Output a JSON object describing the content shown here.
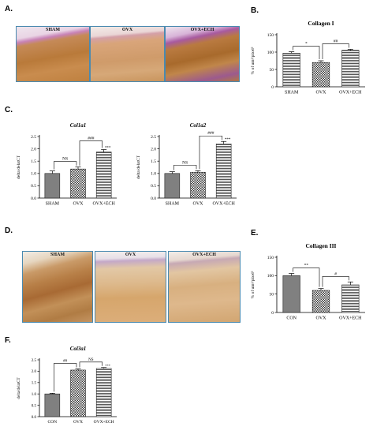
{
  "panels": {
    "a": {
      "label": "A.",
      "images": [
        "SHAM",
        "OVX",
        "OVX+ECH"
      ]
    },
    "b": {
      "label": "B."
    },
    "c": {
      "label": "C."
    },
    "d": {
      "label": "D.",
      "images": [
        "SHAM",
        "OVX",
        "OVX+ECH"
      ]
    },
    "e": {
      "label": "E."
    },
    "f": {
      "label": "F."
    }
  },
  "chart_data": [
    {
      "id": "B",
      "type": "bar",
      "title": "Collagen I",
      "ylabel": "% of um²/pixel²",
      "categories": [
        "SHAM",
        "OVX",
        "OVX+ECH"
      ],
      "values": [
        97,
        70,
        105
      ],
      "errors": [
        4,
        5,
        3
      ],
      "ylim": [
        0,
        150
      ],
      "yticks": [
        0,
        50,
        100,
        150
      ],
      "brackets": [
        {
          "from": 0,
          "to": 1,
          "label": "*"
        },
        {
          "from": 1,
          "to": 2,
          "label": "##"
        }
      ],
      "patterns": [
        "hline",
        "check",
        "hline"
      ]
    },
    {
      "id": "C1",
      "type": "bar",
      "title": "Col1a1",
      "ylabel": "delta/delatCT",
      "categories": [
        "SHAM",
        "OVX",
        "OVX+ECH"
      ],
      "values": [
        1.0,
        1.18,
        1.87
      ],
      "errors": [
        0.1,
        0.08,
        0.1
      ],
      "ylim": [
        0,
        2.5
      ],
      "yticks": [
        0.0,
        0.5,
        1.0,
        1.5,
        2.0,
        2.5
      ],
      "brackets": [
        {
          "from": 0,
          "to": 1,
          "label": "NS"
        },
        {
          "from": 1,
          "to": 2,
          "label": "###"
        }
      ],
      "starlabels": [
        "",
        "",
        "***"
      ],
      "patterns": [
        "dgray",
        "check",
        "hline"
      ]
    },
    {
      "id": "C2",
      "type": "bar",
      "title": "Col1a2",
      "ylabel": "delta/delatCT",
      "categories": [
        "SHAM",
        "OVX",
        "OVX+ECH"
      ],
      "values": [
        1.0,
        1.05,
        2.2
      ],
      "errors": [
        0.07,
        0.06,
        0.1
      ],
      "ylim": [
        0,
        2.5
      ],
      "yticks": [
        0.0,
        0.5,
        1.0,
        1.5,
        2.0,
        2.5
      ],
      "brackets": [
        {
          "from": 0,
          "to": 1,
          "label": "NS"
        },
        {
          "from": 1,
          "to": 2,
          "label": "###"
        }
      ],
      "starlabels": [
        "",
        "",
        "***"
      ],
      "patterns": [
        "dgray",
        "check",
        "hline"
      ]
    },
    {
      "id": "E",
      "type": "bar",
      "title": "Collagen III",
      "ylabel": "% of um²/pixel²",
      "categories": [
        "CON",
        "OVX",
        "OVX+ECH"
      ],
      "values": [
        100,
        60,
        75
      ],
      "errors": [
        6,
        5,
        8
      ],
      "ylim": [
        0,
        150
      ],
      "yticks": [
        0,
        50,
        100,
        150
      ],
      "brackets": [
        {
          "from": 0,
          "to": 1,
          "label": "**"
        },
        {
          "from": 1,
          "to": 2,
          "label": "#"
        }
      ],
      "patterns": [
        "dgray",
        "check",
        "hline"
      ]
    },
    {
      "id": "F",
      "type": "bar",
      "title": "Col3a1",
      "ylabel": "delta/delatCT",
      "categories": [
        "CON",
        "OVX",
        "OVX+ECH"
      ],
      "values": [
        1.0,
        2.05,
        2.12
      ],
      "errors": [
        0.03,
        0.05,
        0.04
      ],
      "ylim": [
        0,
        2.5
      ],
      "yticks": [
        0.0,
        0.5,
        1.0,
        1.5,
        2.0,
        2.5
      ],
      "brackets": [
        {
          "from": 0,
          "to": 1,
          "label": "##"
        },
        {
          "from": 1,
          "to": 2,
          "label": "NS"
        }
      ],
      "starlabels": [
        "",
        "",
        "***"
      ],
      "patterns": [
        "dgray",
        "check",
        "hline"
      ]
    }
  ]
}
